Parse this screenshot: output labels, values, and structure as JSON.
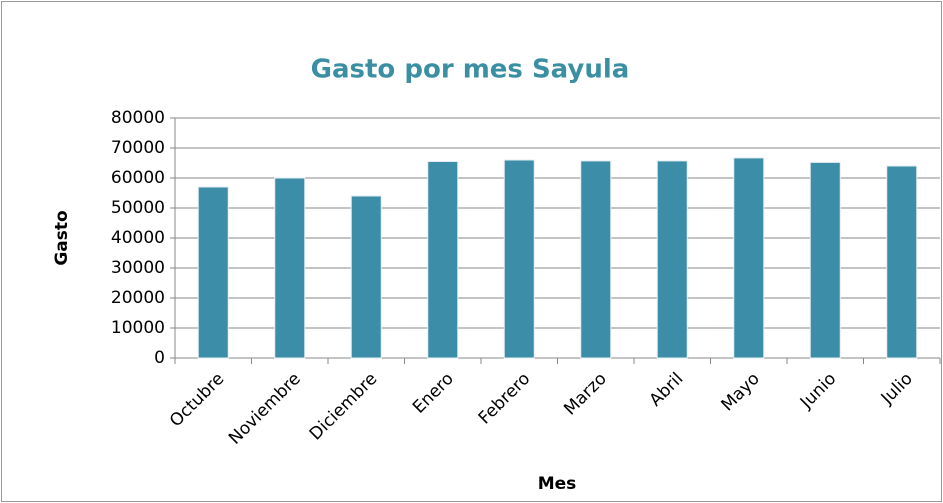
{
  "chart_data": {
    "type": "bar",
    "title": "Gasto por mes Sayula",
    "x_label": "Mes",
    "y_label": "Gasto",
    "categories": [
      "Octubre",
      "Noviembre",
      "Diciembre",
      "Enero",
      "Febrero",
      "Marzo",
      "Abril",
      "Mayo",
      "Junio",
      "Julio"
    ],
    "values": [
      57000,
      60000,
      54000,
      65500,
      66000,
      65700,
      65700,
      66700,
      65200,
      64000
    ],
    "color": "#3c8da7",
    "ylim": [
      0,
      80000
    ],
    "yticks": [
      0,
      10000,
      20000,
      30000,
      40000,
      50000,
      60000,
      70000,
      80000
    ],
    "grid": true
  }
}
